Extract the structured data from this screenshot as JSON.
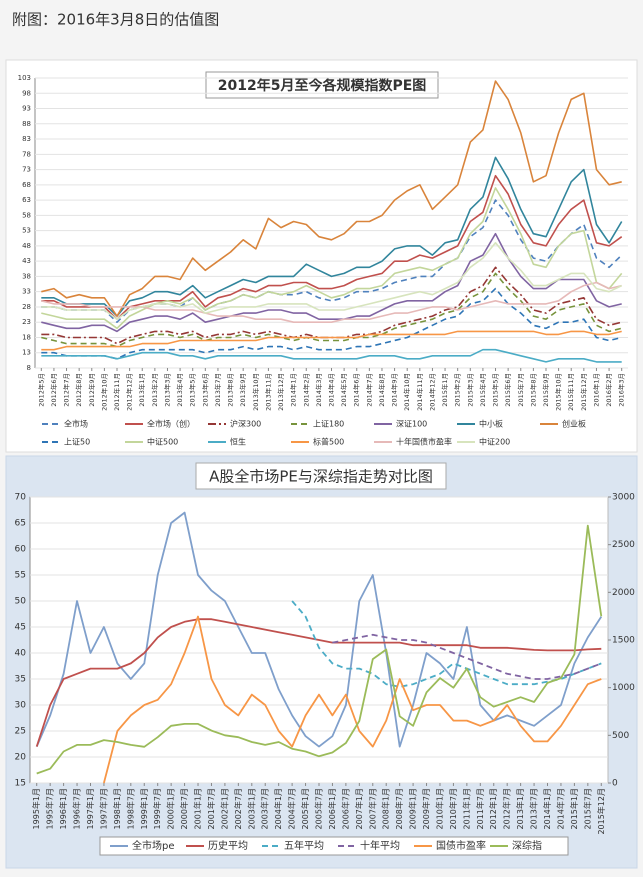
{
  "header": {
    "title": "附图：2016年3月8日的估值图"
  },
  "chart_data": [
    {
      "type": "line",
      "title": "2012年5月至今各规模指数PE图",
      "categories": [
        "2012年5月",
        "2012年6月",
        "2012年7月",
        "2012年8月",
        "2012年9月",
        "2012年10月",
        "2012年11月",
        "2012年12月",
        "2013年1月",
        "2013年2月",
        "2013年3月",
        "2013年4月",
        "2013年5月",
        "2013年6月",
        "2013年7月",
        "2013年8月",
        "2013年9月",
        "2013年10月",
        "2013年11月",
        "2013年12月",
        "2014年1月",
        "2014年2月",
        "2014年3月",
        "2014年4月",
        "2014年5月",
        "2014年6月",
        "2014年7月",
        "2014年8月",
        "2014年9月",
        "2014年10月",
        "2014年11月",
        "2014年12月",
        "2015年1月",
        "2015年2月",
        "2015年3月",
        "2015年4月",
        "2015年5月",
        "2015年6月",
        "2015年7月",
        "2015年8月",
        "2015年9月",
        "2015年10月",
        "2015年11月",
        "2015年12月",
        "2016年1月",
        "2016年2月",
        "2016年3月"
      ],
      "ylim": [
        8,
        103
      ],
      "yticks": [
        8,
        13,
        18,
        23,
        28,
        33,
        38,
        43,
        48,
        53,
        58,
        63,
        68,
        73,
        78,
        83,
        88,
        93,
        98,
        103
      ],
      "grid": true,
      "series": [
        {
          "name": "全市场",
          "color": "#4f81bd",
          "style": "dashed",
          "values": [
            28,
            28,
            27,
            27,
            27,
            27,
            23,
            27,
            28,
            29,
            29,
            28,
            31,
            27,
            29,
            30,
            32,
            31,
            33,
            32,
            32,
            33,
            31,
            30,
            31,
            33,
            33,
            34,
            36,
            37,
            38,
            38,
            42,
            44,
            51,
            54,
            63,
            58,
            50,
            44,
            43,
            48,
            52,
            55,
            44,
            41,
            45
          ]
        },
        {
          "name": "全市场（创）",
          "color": "#c0504d",
          "style": "solid",
          "values": [
            30,
            30,
            28,
            28,
            28,
            28,
            24,
            28,
            29,
            30,
            30,
            30,
            33,
            28,
            31,
            32,
            34,
            33,
            35,
            35,
            36,
            36,
            34,
            34,
            35,
            37,
            38,
            39,
            43,
            43,
            45,
            44,
            46,
            48,
            56,
            59,
            71,
            65,
            55,
            49,
            48,
            55,
            60,
            63,
            49,
            48,
            51
          ]
        },
        {
          "name": "沪深300",
          "color": "#953735",
          "style": "dashdot",
          "values": [
            19,
            19,
            18,
            18,
            18,
            18,
            16,
            18,
            19,
            20,
            20,
            19,
            20,
            18,
            19,
            19,
            20,
            19,
            20,
            19,
            18,
            19,
            18,
            18,
            18,
            19,
            19,
            20,
            22,
            23,
            24,
            25,
            27,
            28,
            33,
            35,
            41,
            36,
            32,
            27,
            26,
            29,
            30,
            31,
            24,
            22,
            23
          ]
        },
        {
          "name": "上证180",
          "color": "#77933c",
          "style": "dashed",
          "values": [
            18,
            17,
            16,
            16,
            16,
            16,
            15,
            17,
            18,
            19,
            19,
            18,
            19,
            17,
            18,
            18,
            19,
            18,
            19,
            18,
            17,
            18,
            17,
            17,
            17,
            18,
            18,
            19,
            21,
            22,
            23,
            24,
            26,
            27,
            31,
            33,
            39,
            34,
            30,
            25,
            24,
            27,
            28,
            29,
            22,
            20,
            21
          ]
        },
        {
          "name": "深证100",
          "color": "#8064a2",
          "style": "solid",
          "values": [
            23,
            22,
            21,
            21,
            22,
            22,
            20,
            23,
            24,
            25,
            25,
            24,
            26,
            23,
            24,
            25,
            26,
            26,
            27,
            27,
            26,
            26,
            24,
            24,
            24,
            25,
            25,
            27,
            29,
            30,
            30,
            30,
            33,
            35,
            43,
            45,
            52,
            44,
            38,
            34,
            34,
            37,
            37,
            37,
            30,
            28,
            29
          ]
        },
        {
          "name": "中小板",
          "color": "#31859c",
          "style": "solid",
          "values": [
            31,
            31,
            29,
            29,
            29,
            29,
            25,
            30,
            31,
            33,
            33,
            32,
            35,
            31,
            33,
            35,
            37,
            36,
            38,
            38,
            38,
            42,
            40,
            38,
            39,
            41,
            41,
            43,
            47,
            48,
            48,
            45,
            49,
            50,
            60,
            64,
            77,
            70,
            60,
            52,
            51,
            60,
            69,
            73,
            55,
            49,
            56
          ]
        },
        {
          "name": "创业板",
          "color": "#d9843b",
          "style": "solid",
          "values": [
            33,
            34,
            31,
            32,
            31,
            31,
            25,
            32,
            34,
            38,
            38,
            37,
            44,
            40,
            43,
            46,
            50,
            47,
            57,
            54,
            56,
            55,
            51,
            50,
            52,
            56,
            56,
            58,
            63,
            66,
            68,
            60,
            64,
            68,
            82,
            86,
            102,
            96,
            85,
            69,
            71,
            85,
            96,
            98,
            73,
            68,
            69
          ]
        },
        {
          "name": "上证50",
          "color": "#2e75b6",
          "style": "dashed",
          "values": [
            13,
            13,
            12,
            12,
            12,
            12,
            11,
            13,
            14,
            14,
            14,
            14,
            14,
            13,
            14,
            14,
            15,
            14,
            15,
            15,
            14,
            15,
            14,
            14,
            14,
            15,
            15,
            16,
            17,
            18,
            20,
            22,
            24,
            25,
            29,
            30,
            34,
            29,
            26,
            22,
            21,
            23,
            23,
            24,
            18,
            17,
            18
          ]
        },
        {
          "name": "中证500",
          "color": "#c3d69b",
          "style": "solid",
          "values": [
            26,
            25,
            24,
            24,
            24,
            24,
            21,
            25,
            27,
            29,
            30,
            29,
            31,
            27,
            29,
            30,
            32,
            31,
            33,
            32,
            33,
            35,
            33,
            31,
            32,
            34,
            34,
            35,
            39,
            40,
            41,
            40,
            42,
            44,
            52,
            56,
            67,
            60,
            52,
            42,
            41,
            48,
            52,
            53,
            36,
            34,
            39
          ]
        },
        {
          "name": "恒生",
          "color": "#4bacc6",
          "style": "solid",
          "values": [
            12,
            12,
            12,
            12,
            12,
            12,
            11,
            12,
            13,
            13,
            13,
            12,
            12,
            11,
            12,
            12,
            12,
            12,
            12,
            12,
            11,
            11,
            11,
            11,
            11,
            11,
            12,
            12,
            12,
            11,
            11,
            12,
            12,
            12,
            12,
            14,
            14,
            13,
            12,
            11,
            10,
            11,
            11,
            11,
            10,
            10,
            10
          ]
        },
        {
          "name": "标普500",
          "color": "#f79646",
          "style": "solid",
          "values": [
            14,
            14,
            15,
            15,
            15,
            15,
            15,
            15,
            16,
            16,
            16,
            17,
            17,
            17,
            17,
            17,
            17,
            17,
            18,
            18,
            18,
            18,
            18,
            18,
            18,
            18,
            19,
            19,
            19,
            19,
            19,
            19,
            19,
            20,
            20,
            20,
            20,
            20,
            20,
            20,
            19,
            19,
            20,
            20,
            19,
            19,
            20
          ]
        },
        {
          "name": "十年国债市盈率",
          "color": "#e6b9b8",
          "style": "solid",
          "values": [
            30,
            29,
            29,
            29,
            28,
            28,
            28,
            28,
            28,
            27,
            27,
            27,
            27,
            26,
            25,
            25,
            25,
            24,
            24,
            24,
            23,
            23,
            23,
            23,
            24,
            24,
            24,
            25,
            26,
            26,
            27,
            28,
            28,
            27,
            28,
            29,
            30,
            29,
            29,
            29,
            29,
            30,
            33,
            35,
            36,
            34,
            35
          ]
        },
        {
          "name": "中证200",
          "color": "#d7e4bd",
          "style": "solid",
          "values": [
            28,
            28,
            27,
            27,
            27,
            27,
            24,
            27,
            28,
            29,
            29,
            28,
            29,
            26,
            27,
            28,
            28,
            28,
            29,
            29,
            29,
            29,
            27,
            27,
            27,
            28,
            29,
            30,
            31,
            32,
            33,
            32,
            34,
            36,
            41,
            44,
            49,
            44,
            40,
            35,
            35,
            37,
            39,
            39,
            34,
            33,
            35
          ]
        }
      ]
    },
    {
      "type": "line",
      "title": "A股全市场PE与深综指走势对比图",
      "categories": [
        "1995年1月",
        "1995年7月",
        "1996年1月",
        "1996年7月",
        "1997年1月",
        "1997年7月",
        "1998年1月",
        "1998年7月",
        "1999年1月",
        "1999年7月",
        "2000年1月",
        "2000年7月",
        "2001年1月",
        "2001年7月",
        "2002年1月",
        "2002年7月",
        "2003年1月",
        "2003年7月",
        "2004年1月",
        "2004年7月",
        "2005年1月",
        "2005年7月",
        "2006年1月",
        "2006年7月",
        "2007年1月",
        "2007年7月",
        "2008年1月",
        "2008年7月",
        "2009年1月",
        "2009年7月",
        "2010年1月",
        "2010年7月",
        "2011年1月",
        "2011年7月",
        "2012年1月",
        "2012年7月",
        "2013年1月",
        "2013年7月",
        "2014年1月",
        "2014年7月",
        "2015年1月",
        "2015年7月",
        "2015年12月"
      ],
      "ylim": [
        15,
        70
      ],
      "yticks": [
        15,
        20,
        25,
        30,
        35,
        40,
        45,
        50,
        55,
        60,
        65,
        70
      ],
      "y2lim": [
        0,
        3000
      ],
      "y2ticks": [
        0,
        500,
        1000,
        1500,
        2000,
        2500,
        3000
      ],
      "grid": true,
      "series": [
        {
          "name": "全市场pe",
          "color": "#7f9fcb",
          "style": "solid",
          "values": [
            22,
            28,
            36,
            50,
            40,
            45,
            38,
            35,
            38,
            55,
            65,
            67,
            55,
            52,
            50,
            45,
            40,
            40,
            33,
            28,
            24,
            22,
            24,
            30,
            50,
            55,
            40,
            22,
            30,
            40,
            38,
            35,
            45,
            30,
            27,
            28,
            27,
            26,
            28,
            30,
            38,
            43,
            47
          ]
        },
        {
          "name": "历史平均",
          "color": "#c0504d",
          "style": "solid",
          "values": [
            22,
            30,
            35,
            36,
            37,
            37,
            37,
            38,
            40,
            43,
            45,
            46,
            46.5,
            46.5,
            46,
            45.5,
            45,
            44.5,
            44,
            43.5,
            43,
            42.5,
            42,
            42,
            42,
            42,
            42,
            42,
            41.5,
            41.5,
            41.5,
            41.5,
            41.5,
            41,
            41,
            41,
            40.8,
            40.6,
            40.5,
            40.5,
            40.5,
            40.7,
            40.8
          ]
        },
        {
          "name": "五年平均",
          "color": "#4bacc6",
          "style": "dashed",
          "values": [
            null,
            null,
            null,
            null,
            null,
            null,
            null,
            null,
            null,
            null,
            null,
            null,
            null,
            null,
            null,
            null,
            null,
            null,
            null,
            50,
            47,
            41,
            38,
            37,
            37,
            36,
            34,
            33.5,
            34,
            35,
            36,
            38,
            37,
            36,
            35,
            34,
            34,
            34,
            34.5,
            35,
            36,
            37,
            38
          ]
        },
        {
          "name": "十年平均",
          "color": "#8064a2",
          "style": "dashed",
          "values": [
            null,
            null,
            null,
            null,
            null,
            null,
            null,
            null,
            null,
            null,
            null,
            null,
            null,
            null,
            null,
            null,
            null,
            null,
            null,
            null,
            null,
            null,
            42,
            42.5,
            43,
            43.5,
            43,
            42.5,
            42.5,
            42,
            41,
            40,
            39,
            38,
            37,
            36,
            35.5,
            35,
            35,
            35.5,
            36,
            37,
            38
          ]
        },
        {
          "name": "国债市盈率",
          "color": "#f79646",
          "style": "solid",
          "values": [
            null,
            null,
            null,
            null,
            null,
            15,
            25,
            28,
            30,
            31,
            34,
            40,
            47,
            35,
            30,
            28,
            32,
            30,
            25,
            22,
            28,
            32,
            28,
            32,
            25,
            22,
            27,
            35,
            29,
            30,
            30,
            27,
            27,
            26,
            27,
            30,
            26,
            23,
            23,
            26,
            30,
            34,
            35
          ]
        },
        {
          "name": "深综指",
          "color": "#9bbb59",
          "style": "solid",
          "axis": "y2",
          "values": [
            100,
            150,
            330,
            400,
            400,
            450,
            430,
            400,
            380,
            480,
            600,
            620,
            620,
            550,
            500,
            480,
            430,
            400,
            430,
            360,
            330,
            280,
            320,
            420,
            650,
            1300,
            1400,
            700,
            600,
            950,
            1100,
            1000,
            1200,
            900,
            800,
            850,
            900,
            850,
            1050,
            1100,
            1350,
            2700,
            1750
          ]
        }
      ]
    }
  ]
}
